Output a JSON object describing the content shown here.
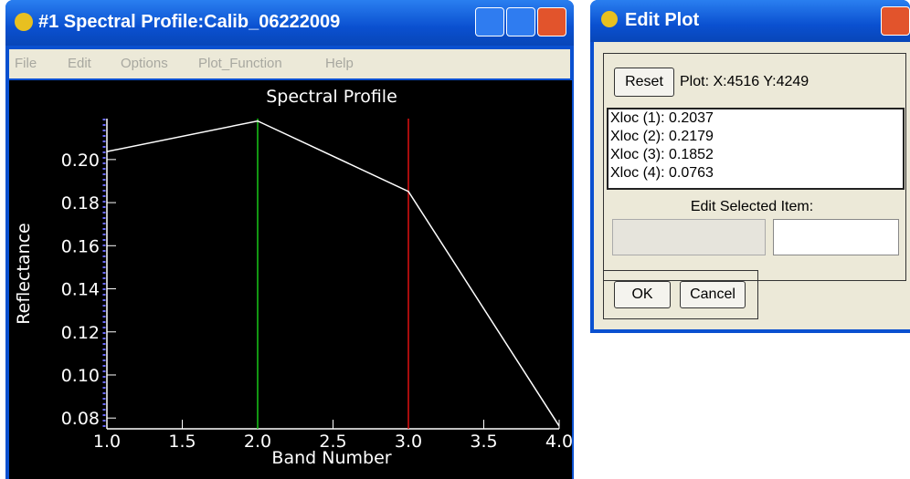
{
  "window": {
    "title": "#1 Spectral Profile:Calib_06222009",
    "menu": [
      "File",
      "Edit",
      "Options",
      "Plot_Function",
      "Help"
    ]
  },
  "chart_data": {
    "type": "line",
    "title": "Spectral Profile",
    "x_label": "Band Number",
    "y_label": "Reflectance",
    "x": [
      1,
      2,
      3,
      4
    ],
    "values": [
      0.2037,
      0.2179,
      0.1852,
      0.0763
    ],
    "color": "#ffffff",
    "vlines": [
      {
        "x": 2,
        "color": "#19c819"
      },
      {
        "x": 3,
        "color": "#e01010"
      }
    ],
    "xlim": [
      1,
      4
    ],
    "ylim": [
      0.075,
      0.219
    ],
    "xticks": [
      {
        "value": 1,
        "label": "1.0"
      },
      {
        "value": 1.5,
        "label": "1.5"
      },
      {
        "value": 2,
        "label": "2.0"
      },
      {
        "value": 2.5,
        "label": "2.5"
      },
      {
        "value": 3,
        "label": "3.0"
      },
      {
        "value": 3.5,
        "label": "3.5"
      },
      {
        "value": 4,
        "label": "4.0"
      }
    ],
    "yticks": [
      {
        "value": 0.08,
        "label": "0.08"
      },
      {
        "value": 0.1,
        "label": "0.10"
      },
      {
        "value": 0.12,
        "label": "0.12"
      },
      {
        "value": 0.14,
        "label": "0.14"
      },
      {
        "value": 0.16,
        "label": "0.16"
      },
      {
        "value": 0.18,
        "label": "0.18"
      },
      {
        "value": 0.2,
        "label": "0.20"
      }
    ]
  },
  "dialog": {
    "title": "Edit Plot",
    "reset": "Reset",
    "plot_position": "Plot: X:4516 Y:4249",
    "list": [
      "Xloc (1): 0.2037",
      "Xloc (2): 0.2179",
      "Xloc (3): 0.1852",
      "Xloc (4): 0.0763"
    ],
    "edit_label": "Edit Selected Item:",
    "ok": "OK",
    "cancel": "Cancel"
  }
}
